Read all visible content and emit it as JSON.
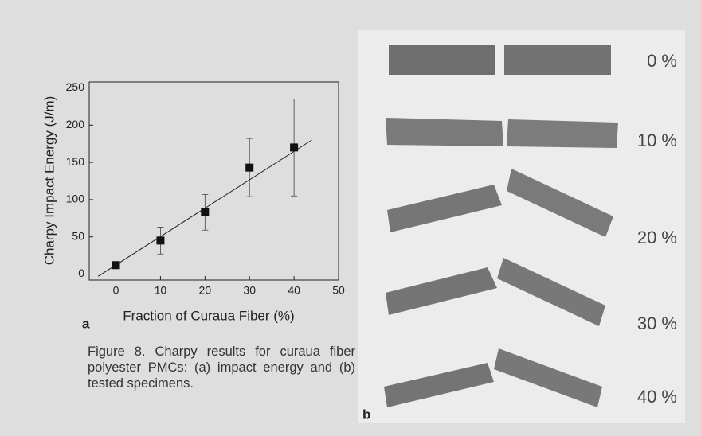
{
  "chart_data": {
    "type": "scatter",
    "x_label": "Fraction of Curaua Fiber (%)",
    "y_label": "Charpy Impact Energy (J/m)",
    "series": [
      {
        "color": "#111111",
        "x": [
          0,
          10,
          20,
          30,
          40
        ],
        "values": [
          12,
          45,
          83,
          143,
          170
        ],
        "errors": [
          3,
          18,
          24,
          39,
          65
        ]
      }
    ],
    "fit": {
      "x": [
        -4,
        44
      ],
      "values": [
        -3,
        180
      ]
    },
    "xlim": [
      -6,
      50
    ],
    "ylim": [
      -8,
      258
    ],
    "xticks": [
      0,
      10,
      20,
      30,
      40,
      50
    ],
    "yticks": [
      0,
      50,
      100,
      150,
      200,
      250
    ]
  },
  "panel_labels": [
    "a",
    "b"
  ],
  "caption": "Figure 8. Charpy results for curaua fiber polyester PMCs: (a) impact energy and (b) tested specimens.",
  "photo": {
    "labels": [
      "0 %",
      "10 %",
      "20 %",
      "30 %",
      "40 %"
    ]
  }
}
